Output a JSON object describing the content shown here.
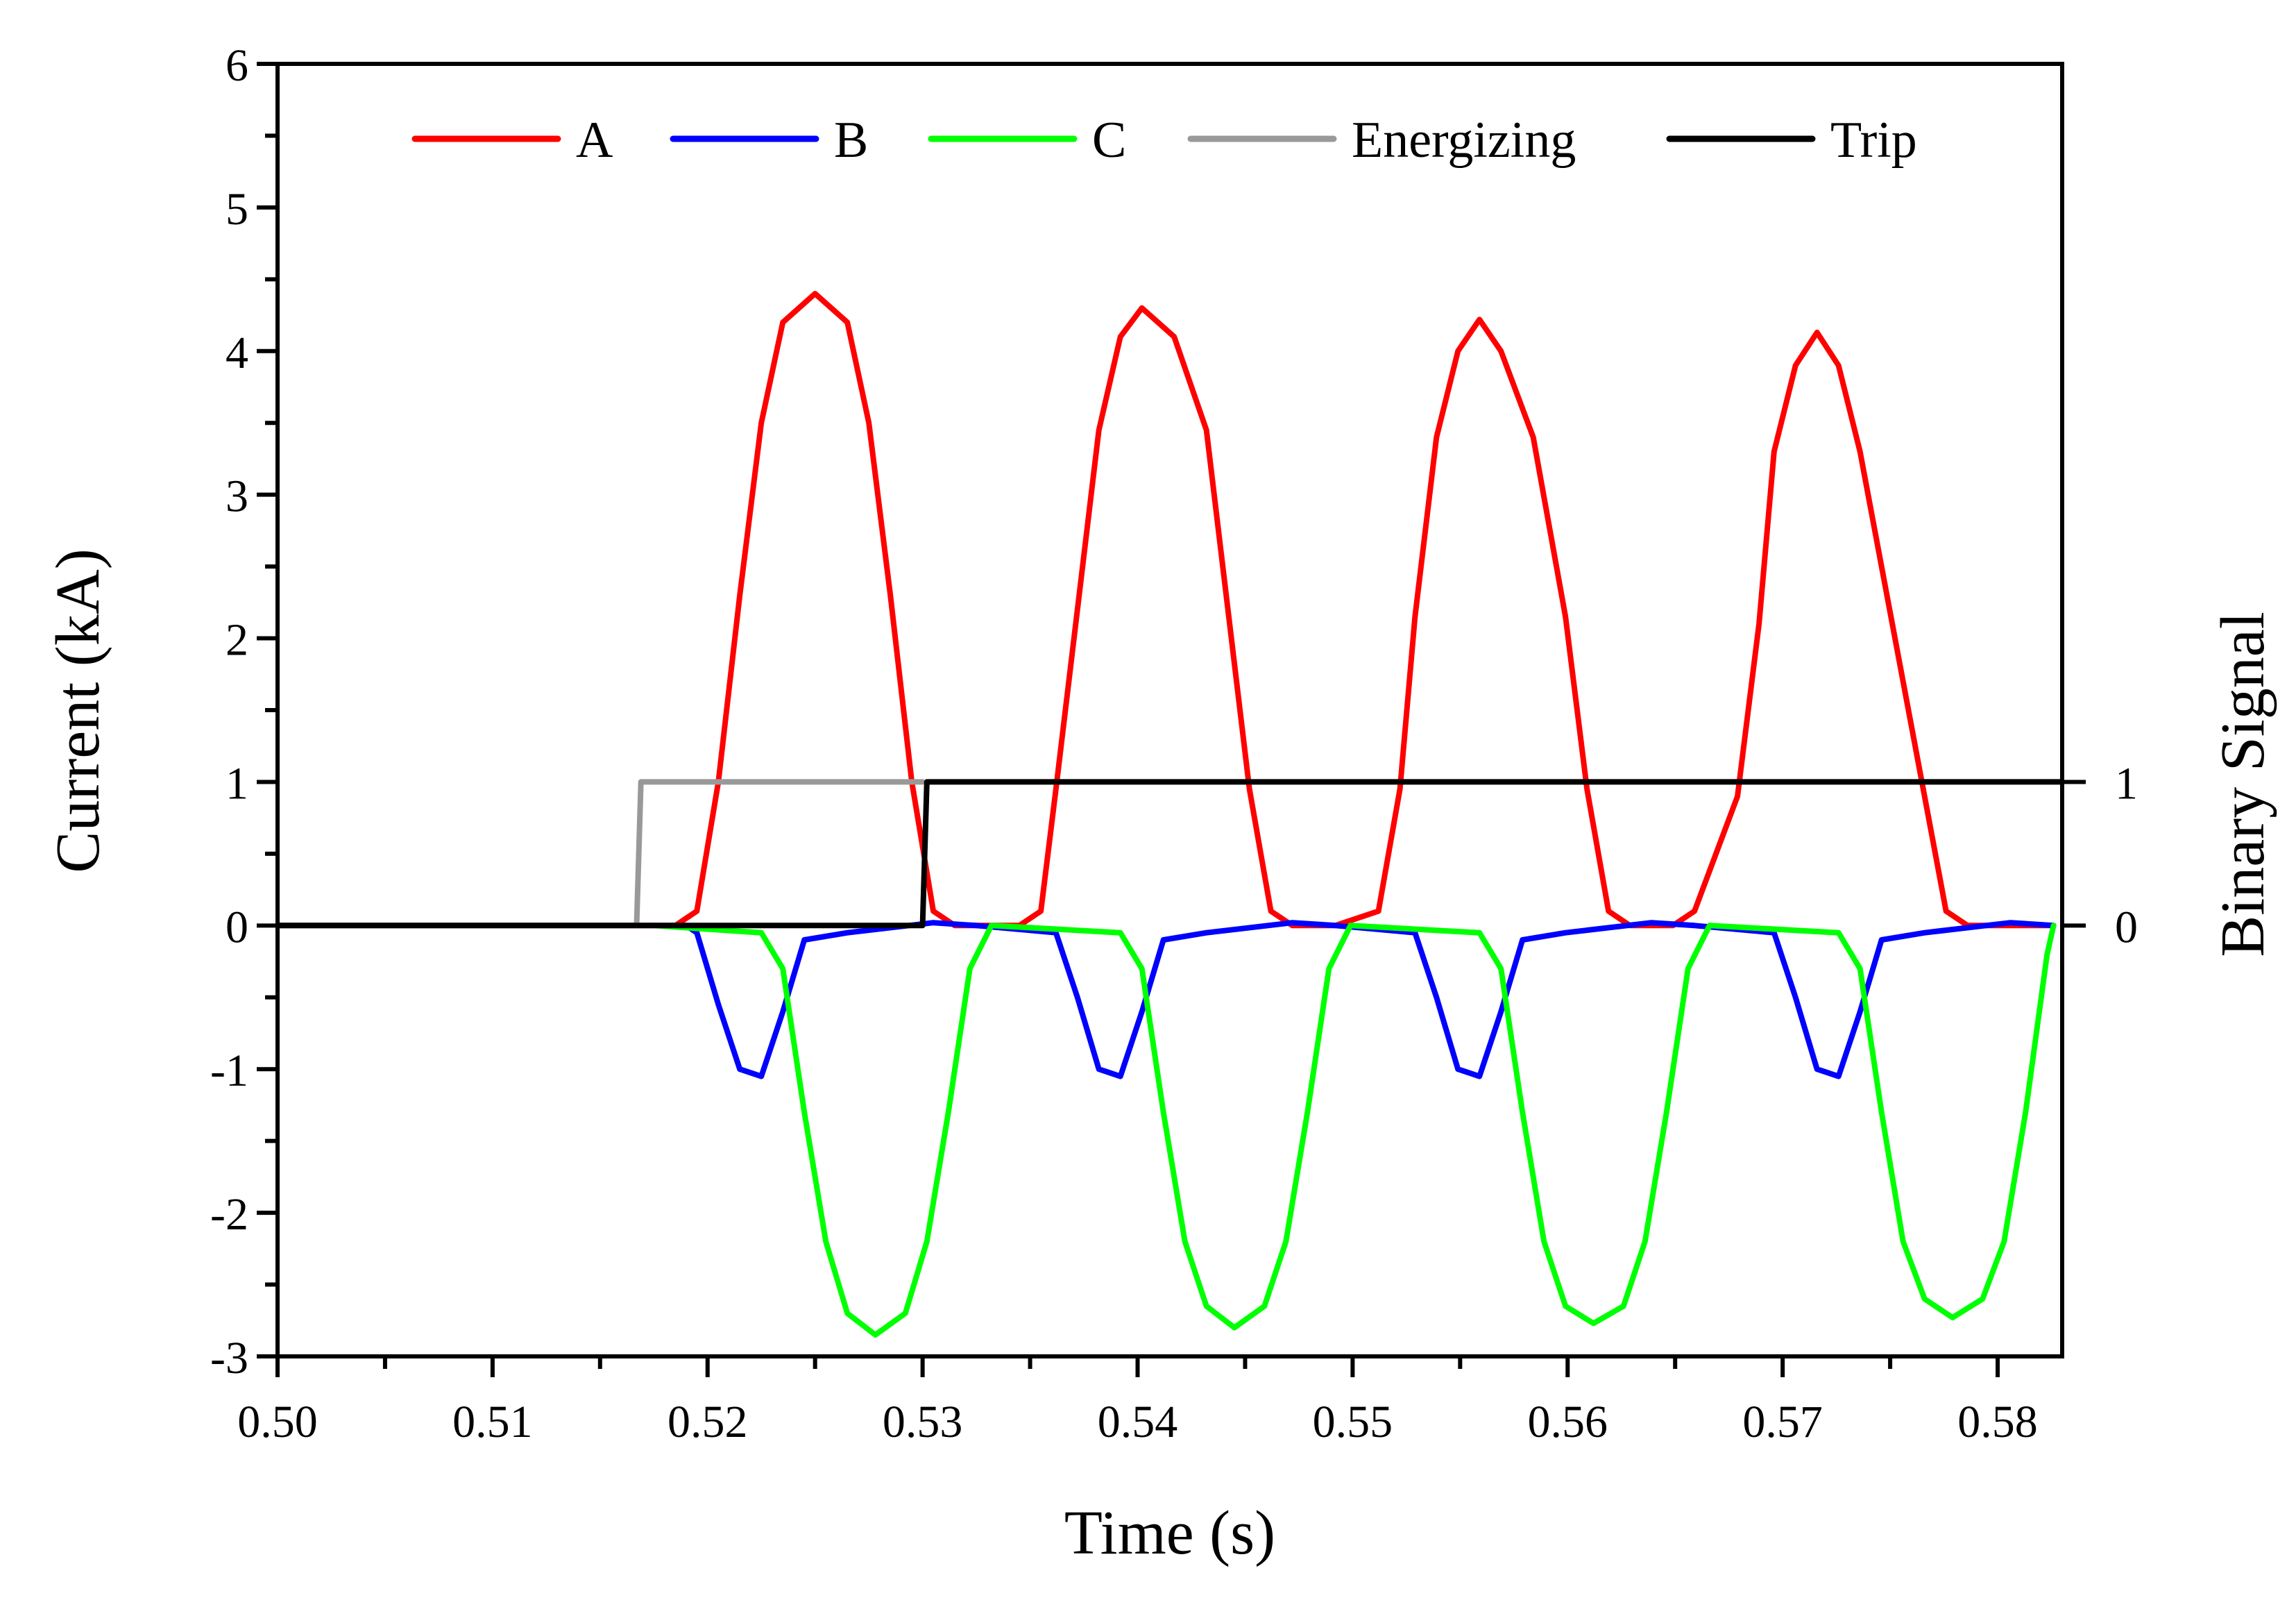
{
  "chart_data": {
    "type": "line",
    "xlabel": "Time (s)",
    "ylabel": "Current (kA)",
    "y2label": "Binary Signal",
    "xlim": [
      0.5,
      0.583
    ],
    "ylim": [
      -3,
      6
    ],
    "x_ticks": [
      "0.50",
      "0.51",
      "0.52",
      "0.53",
      "0.54",
      "0.55",
      "0.56",
      "0.57",
      "0.58"
    ],
    "y_ticks": [
      "-3",
      "-2",
      "-1",
      "0",
      "1",
      "2",
      "3",
      "4",
      "5",
      "6"
    ],
    "y2_ticks": [
      "0",
      "1"
    ],
    "grid": false,
    "legend_position": "top",
    "series": [
      {
        "name": "A",
        "color": "#ff0000",
        "x": [
          0.5,
          0.5185,
          0.5195,
          0.5205,
          0.5215,
          0.5225,
          0.5235,
          0.525,
          0.5265,
          0.5275,
          0.5285,
          0.5295,
          0.5305,
          0.5315,
          0.5325,
          0.5345,
          0.5355,
          0.5362,
          0.5372,
          0.5382,
          0.5392,
          0.5402,
          0.5417,
          0.5432,
          0.5442,
          0.5452,
          0.5462,
          0.5472,
          0.5482,
          0.5492,
          0.5512,
          0.5522,
          0.5529,
          0.5539,
          0.5549,
          0.5559,
          0.5569,
          0.5584,
          0.5599,
          0.5609,
          0.5619,
          0.5629,
          0.5639,
          0.5649,
          0.5659,
          0.5679,
          0.5689,
          0.5696,
          0.5706,
          0.5716,
          0.5726,
          0.5736,
          0.5751,
          0.5766,
          0.5776,
          0.5786,
          0.5796,
          0.5806,
          0.5816,
          0.5826
        ],
        "y": [
          0,
          0,
          0.1,
          1.0,
          2.3,
          3.5,
          4.2,
          4.4,
          4.2,
          3.5,
          2.3,
          1.0,
          0.1,
          0,
          0,
          0,
          0.1,
          0.95,
          2.2,
          3.45,
          4.1,
          4.3,
          4.1,
          3.45,
          2.2,
          0.95,
          0.1,
          0,
          0,
          0,
          0.1,
          0.95,
          2.15,
          3.4,
          4.0,
          4.22,
          4.0,
          3.4,
          2.15,
          0.95,
          0.1,
          0,
          0,
          0,
          0.1,
          0.9,
          2.1,
          3.3,
          3.9,
          4.13,
          3.9,
          3.3,
          2.1,
          0.9,
          0.1,
          0,
          0,
          0,
          0,
          0
        ]
      },
      {
        "name": "B",
        "color": "#0000ff",
        "x": [
          0.519,
          0.5195,
          0.5205,
          0.5215,
          0.5225,
          0.5235,
          0.5245,
          0.5265,
          0.5305,
          0.5325,
          0.5362,
          0.5372,
          0.5382,
          0.5392,
          0.5402,
          0.5412,
          0.5432,
          0.5472,
          0.5492,
          0.5529,
          0.5539,
          0.5549,
          0.5559,
          0.5569,
          0.5579,
          0.5599,
          0.5639,
          0.5659,
          0.5696,
          0.5706,
          0.5716,
          0.5726,
          0.5736,
          0.5746,
          0.5766,
          0.5806,
          0.5826
        ],
        "y": [
          0,
          -0.05,
          -0.55,
          -1.0,
          -1.05,
          -0.6,
          -0.1,
          -0.05,
          0.02,
          0,
          -0.05,
          -0.5,
          -1.0,
          -1.05,
          -0.6,
          -0.1,
          -0.05,
          0.02,
          0,
          -0.05,
          -0.5,
          -1.0,
          -1.05,
          -0.6,
          -0.1,
          -0.05,
          0.02,
          0,
          -0.05,
          -0.5,
          -1.0,
          -1.05,
          -0.6,
          -0.1,
          -0.05,
          0.02,
          0
        ]
      },
      {
        "name": "C",
        "color": "#00ff00",
        "x": [
          0.5175,
          0.5225,
          0.5235,
          0.5245,
          0.5255,
          0.5265,
          0.5278,
          0.5292,
          0.5302,
          0.5312,
          0.5322,
          0.5332,
          0.5392,
          0.5402,
          0.5412,
          0.5422,
          0.5432,
          0.5445,
          0.5459,
          0.5469,
          0.5479,
          0.5489,
          0.5499,
          0.5559,
          0.5569,
          0.5579,
          0.5589,
          0.5599,
          0.5612,
          0.5626,
          0.5636,
          0.5646,
          0.5656,
          0.5666,
          0.5726,
          0.5736,
          0.5746,
          0.5756,
          0.5766,
          0.5779,
          0.5793,
          0.5803,
          0.5813,
          0.5823,
          0.5826
        ],
        "y": [
          0,
          -0.05,
          -0.3,
          -1.3,
          -2.2,
          -2.7,
          -2.85,
          -2.7,
          -2.2,
          -1.3,
          -0.3,
          0,
          -0.05,
          -0.3,
          -1.3,
          -2.2,
          -2.65,
          -2.8,
          -2.65,
          -2.2,
          -1.3,
          -0.3,
          0,
          -0.05,
          -0.3,
          -1.3,
          -2.2,
          -2.65,
          -2.77,
          -2.65,
          -2.2,
          -1.3,
          -0.3,
          0,
          -0.05,
          -0.3,
          -1.3,
          -2.2,
          -2.6,
          -2.73,
          -2.6,
          -2.2,
          -1.3,
          -0.2,
          0
        ]
      },
      {
        "name": "Energizing",
        "color": "#999999",
        "x": [
          0.5,
          0.5167,
          0.5169,
          0.53
        ],
        "y": [
          0,
          0,
          1,
          1
        ]
      },
      {
        "name": "Trip",
        "color": "#000000",
        "x": [
          0.5,
          0.53,
          0.5302,
          0.583
        ],
        "y": [
          0,
          0,
          1,
          1
        ]
      }
    ]
  }
}
